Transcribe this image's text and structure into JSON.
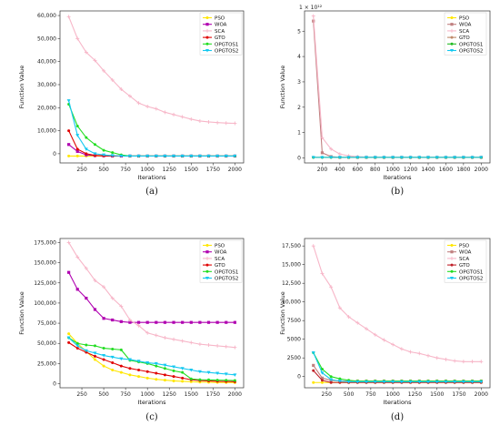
{
  "chart_data": [
    {
      "panel": "(a)",
      "type": "line",
      "xlabel": "Iterations",
      "ylabel": "Function Value",
      "xlim": [
        0,
        2100
      ],
      "ylim": [
        -4000,
        62000
      ],
      "xticks": [
        250,
        500,
        750,
        1000,
        1250,
        1500,
        1750,
        2000
      ],
      "yticks": [
        0,
        10000,
        20000,
        30000,
        40000,
        50000,
        60000
      ],
      "ytick_labels": [
        "0",
        "10,000",
        "20,000",
        "30,000",
        "40,000",
        "50,000",
        "60,000"
      ],
      "x": [
        100,
        200,
        300,
        400,
        500,
        600,
        700,
        800,
        900,
        1000,
        1100,
        1200,
        1300,
        1400,
        1500,
        1600,
        1700,
        1800,
        1900,
        2000
      ],
      "series": [
        {
          "name": "PSO",
          "color": "#ffe600",
          "marker": "circle",
          "values": [
            -1000,
            -1000,
            -1000,
            -1000,
            -1000,
            -1000,
            -1000,
            -1000,
            -1000,
            -1000,
            -1000,
            -1000,
            -1000,
            -1000,
            -1000,
            -1000,
            -1000,
            -1000,
            -1000,
            -1000
          ]
        },
        {
          "name": "WOA",
          "color": "#b000b0",
          "marker": "square",
          "values": [
            4000,
            1000,
            -500,
            -800,
            -900,
            -1000,
            -1000,
            -1000,
            -1000,
            -1000,
            -1000,
            -1000,
            -1000,
            -1000,
            -1000,
            -1000,
            -1000,
            -1000,
            -1000,
            -1000
          ]
        },
        {
          "name": "SCA",
          "color": "#f7b6c8",
          "marker": "plus",
          "values": [
            59500,
            50000,
            44000,
            40500,
            36000,
            32000,
            28000,
            25000,
            22000,
            20500,
            19500,
            18000,
            17000,
            16000,
            15000,
            14200,
            13800,
            13500,
            13300,
            13200
          ]
        },
        {
          "name": "GTO",
          "color": "#e00000",
          "marker": "circle",
          "values": [
            10000,
            2000,
            0,
            -700,
            -900,
            -1000,
            -1000,
            -1000,
            -1000,
            -1000,
            -1000,
            -1000,
            -1000,
            -1000,
            -1000,
            -1000,
            -1000,
            -1000,
            -1000,
            -1000
          ]
        },
        {
          "name": "OPGTOS1",
          "color": "#22dd22",
          "marker": "circle",
          "values": [
            21500,
            12000,
            7000,
            4000,
            1500,
            500,
            -500,
            -1000,
            -1000,
            -1000,
            -1000,
            -1000,
            -1000,
            -1000,
            -1000,
            -1000,
            -1000,
            -1000,
            -1000,
            -1000
          ]
        },
        {
          "name": "OPGTOS2",
          "color": "#14c8f0",
          "marker": "triangle",
          "values": [
            23000,
            8000,
            2000,
            0,
            -500,
            -800,
            -1000,
            -1000,
            -1000,
            -1000,
            -1000,
            -1000,
            -1000,
            -1000,
            -1000,
            -1000,
            -1000,
            -1000,
            -1000,
            -1000
          ]
        }
      ]
    },
    {
      "panel": "(b)",
      "type": "line",
      "xlabel": "Iterations",
      "ylabel": "Function Value",
      "exponent_label": "1 × 10¹²",
      "xlim": [
        0,
        2100
      ],
      "ylim": [
        -0.2,
        5.8
      ],
      "xticks": [
        200,
        400,
        600,
        800,
        1000,
        1200,
        1400,
        1600,
        1800,
        2000
      ],
      "yticks": [
        0,
        1,
        2,
        3,
        4,
        5
      ],
      "ytick_labels": [
        "0",
        "1",
        "2",
        "3",
        "4",
        "5"
      ],
      "x": [
        100,
        200,
        300,
        400,
        500,
        600,
        700,
        800,
        900,
        1000,
        1100,
        1200,
        1300,
        1400,
        1500,
        1600,
        1700,
        1800,
        1900,
        2000
      ],
      "series": [
        {
          "name": "PSO",
          "color": "#ffe600",
          "marker": "circle",
          "values": [
            0.02,
            0.02,
            0.02,
            0.02,
            0.02,
            0.02,
            0.02,
            0.02,
            0.02,
            0.02,
            0.02,
            0.02,
            0.02,
            0.02,
            0.02,
            0.02,
            0.02,
            0.02,
            0.02,
            0.02
          ]
        },
        {
          "name": "WOA",
          "color": "#c08080",
          "marker": "square",
          "values": [
            5.4,
            0.2,
            0.05,
            0.02,
            0.02,
            0.02,
            0.02,
            0.02,
            0.02,
            0.02,
            0.02,
            0.02,
            0.02,
            0.02,
            0.02,
            0.02,
            0.02,
            0.02,
            0.02,
            0.02
          ]
        },
        {
          "name": "SCA",
          "color": "#f7b6c8",
          "marker": "plus",
          "values": [
            5.6,
            0.8,
            0.35,
            0.15,
            0.08,
            0.05,
            0.03,
            0.02,
            0.02,
            0.02,
            0.02,
            0.02,
            0.02,
            0.02,
            0.02,
            0.02,
            0.02,
            0.02,
            0.02,
            0.02
          ]
        },
        {
          "name": "GTO",
          "color": "#c08a6a",
          "marker": "circle",
          "values": [
            0.02,
            0.02,
            0.02,
            0.02,
            0.02,
            0.02,
            0.02,
            0.02,
            0.02,
            0.02,
            0.02,
            0.02,
            0.02,
            0.02,
            0.02,
            0.02,
            0.02,
            0.02,
            0.02,
            0.02
          ]
        },
        {
          "name": "OPGTOS1",
          "color": "#22bb22",
          "marker": "circle",
          "values": [
            0.02,
            0.02,
            0.02,
            0.02,
            0.02,
            0.02,
            0.02,
            0.02,
            0.02,
            0.02,
            0.02,
            0.02,
            0.02,
            0.02,
            0.02,
            0.02,
            0.02,
            0.02,
            0.02,
            0.02
          ]
        },
        {
          "name": "OPGTOS2",
          "color": "#14c8f0",
          "marker": "triangle",
          "values": [
            0.02,
            0.02,
            0.02,
            0.02,
            0.02,
            0.02,
            0.02,
            0.02,
            0.02,
            0.02,
            0.02,
            0.02,
            0.02,
            0.02,
            0.02,
            0.02,
            0.02,
            0.02,
            0.02,
            0.02
          ]
        }
      ]
    },
    {
      "panel": "(c)",
      "type": "line",
      "xlabel": "Iterations",
      "ylabel": "Function Value",
      "xlim": [
        0,
        2100
      ],
      "ylim": [
        -5000,
        180000
      ],
      "xticks": [
        250,
        500,
        750,
        1000,
        1250,
        1500,
        1750,
        2000
      ],
      "yticks": [
        0,
        25000,
        50000,
        75000,
        100000,
        125000,
        150000,
        175000
      ],
      "ytick_labels": [
        "0",
        "25,000",
        "50,000",
        "75,000",
        "100,000",
        "125,000",
        "150,000",
        "175,000"
      ],
      "x": [
        100,
        200,
        300,
        400,
        500,
        600,
        700,
        800,
        900,
        1000,
        1100,
        1200,
        1300,
        1400,
        1500,
        1600,
        1700,
        1800,
        1900,
        2000
      ],
      "series": [
        {
          "name": "PSO",
          "color": "#ffe600",
          "marker": "circle",
          "values": [
            62000,
            50000,
            40000,
            30000,
            22000,
            17000,
            14000,
            11000,
            9000,
            7000,
            5500,
            4500,
            3500,
            3000,
            2500,
            2000,
            1800,
            1600,
            1500,
            1400
          ]
        },
        {
          "name": "WOA",
          "color": "#b000b0",
          "marker": "square",
          "values": [
            138000,
            117000,
            106000,
            92000,
            81000,
            79000,
            77000,
            76000,
            76000,
            76000,
            76000,
            76000,
            76000,
            76000,
            76000,
            76000,
            76000,
            76000,
            76000,
            76000
          ]
        },
        {
          "name": "SCA",
          "color": "#f7b6c8",
          "marker": "plus",
          "values": [
            175000,
            157000,
            143000,
            128000,
            120000,
            106000,
            96000,
            79000,
            72000,
            63000,
            60000,
            57000,
            55000,
            53000,
            51000,
            49000,
            48000,
            47000,
            46000,
            45000
          ]
        },
        {
          "name": "GTO",
          "color": "#e00000",
          "marker": "circle",
          "values": [
            51000,
            44000,
            39000,
            34000,
            30000,
            26000,
            22000,
            19000,
            17000,
            15000,
            13000,
            11000,
            9000,
            7000,
            5000,
            4000,
            3500,
            3000,
            2800,
            2500
          ]
        },
        {
          "name": "OPGTOS1",
          "color": "#22dd22",
          "marker": "circle",
          "values": [
            57000,
            50000,
            48000,
            47000,
            44000,
            43000,
            42000,
            29000,
            27000,
            25000,
            22000,
            19000,
            16000,
            14000,
            6000,
            5000,
            4800,
            4500,
            4300,
            4000
          ]
        },
        {
          "name": "OPGTOS2",
          "color": "#14c8f0",
          "marker": "triangle",
          "values": [
            57000,
            47000,
            41000,
            38000,
            35000,
            33000,
            31000,
            30000,
            28000,
            26000,
            25000,
            23000,
            21000,
            19000,
            17000,
            15000,
            14000,
            13000,
            12000,
            11000
          ]
        }
      ]
    },
    {
      "panel": "(d)",
      "type": "line",
      "xlabel": "Iterations",
      "ylabel": "Function Value",
      "xlim": [
        0,
        2100
      ],
      "ylim": [
        -1500,
        18500
      ],
      "xticks": [
        250,
        500,
        750,
        1000,
        1250,
        1500,
        1750,
        2000
      ],
      "yticks": [
        0,
        2500,
        5000,
        7500,
        10000,
        12500,
        15000,
        17500
      ],
      "ytick_labels": [
        "0",
        "2500",
        "5000",
        "7500",
        "10,000",
        "12,500",
        "15,000",
        "17,500"
      ],
      "x": [
        100,
        200,
        300,
        400,
        500,
        600,
        700,
        800,
        900,
        1000,
        1100,
        1200,
        1300,
        1400,
        1500,
        1600,
        1700,
        1800,
        1900,
        2000
      ],
      "series": [
        {
          "name": "PSO",
          "color": "#ffe600",
          "marker": "circle",
          "values": [
            -800,
            -800,
            -800,
            -800,
            -800,
            -800,
            -800,
            -800,
            -800,
            -800,
            -800,
            -800,
            -800,
            -800,
            -800,
            -800,
            -800,
            -800,
            -800,
            -800
          ]
        },
        {
          "name": "WOA",
          "color": "#c08080",
          "marker": "square",
          "values": [
            1500,
            -200,
            -500,
            -600,
            -600,
            -600,
            -600,
            -600,
            -600,
            -600,
            -600,
            -600,
            -600,
            -600,
            -600,
            -600,
            -600,
            -600,
            -600,
            -600
          ]
        },
        {
          "name": "SCA",
          "color": "#f7b6c8",
          "marker": "plus",
          "values": [
            17500,
            13800,
            12000,
            9200,
            8000,
            7200,
            6400,
            5600,
            4900,
            4300,
            3700,
            3300,
            3100,
            2800,
            2500,
            2300,
            2100,
            2000,
            2000,
            2000
          ]
        },
        {
          "name": "GTO",
          "color": "#c0202a",
          "marker": "circle",
          "values": [
            800,
            -500,
            -800,
            -800,
            -800,
            -800,
            -800,
            -800,
            -800,
            -800,
            -800,
            -800,
            -800,
            -800,
            -800,
            -800,
            -800,
            -800,
            -800,
            -800
          ]
        },
        {
          "name": "OPGTOS1",
          "color": "#22dd22",
          "marker": "circle",
          "values": [
            3200,
            1000,
            0,
            -300,
            -500,
            -600,
            -600,
            -600,
            -600,
            -600,
            -600,
            -600,
            -600,
            -600,
            -600,
            -600,
            -600,
            -600,
            -600,
            -600
          ]
        },
        {
          "name": "OPGTOS2",
          "color": "#14c8f0",
          "marker": "triangle",
          "values": [
            3200,
            500,
            -400,
            -600,
            -700,
            -700,
            -700,
            -700,
            -700,
            -700,
            -700,
            -700,
            -700,
            -700,
            -700,
            -700,
            -700,
            -700,
            -700,
            -700
          ]
        }
      ]
    }
  ]
}
